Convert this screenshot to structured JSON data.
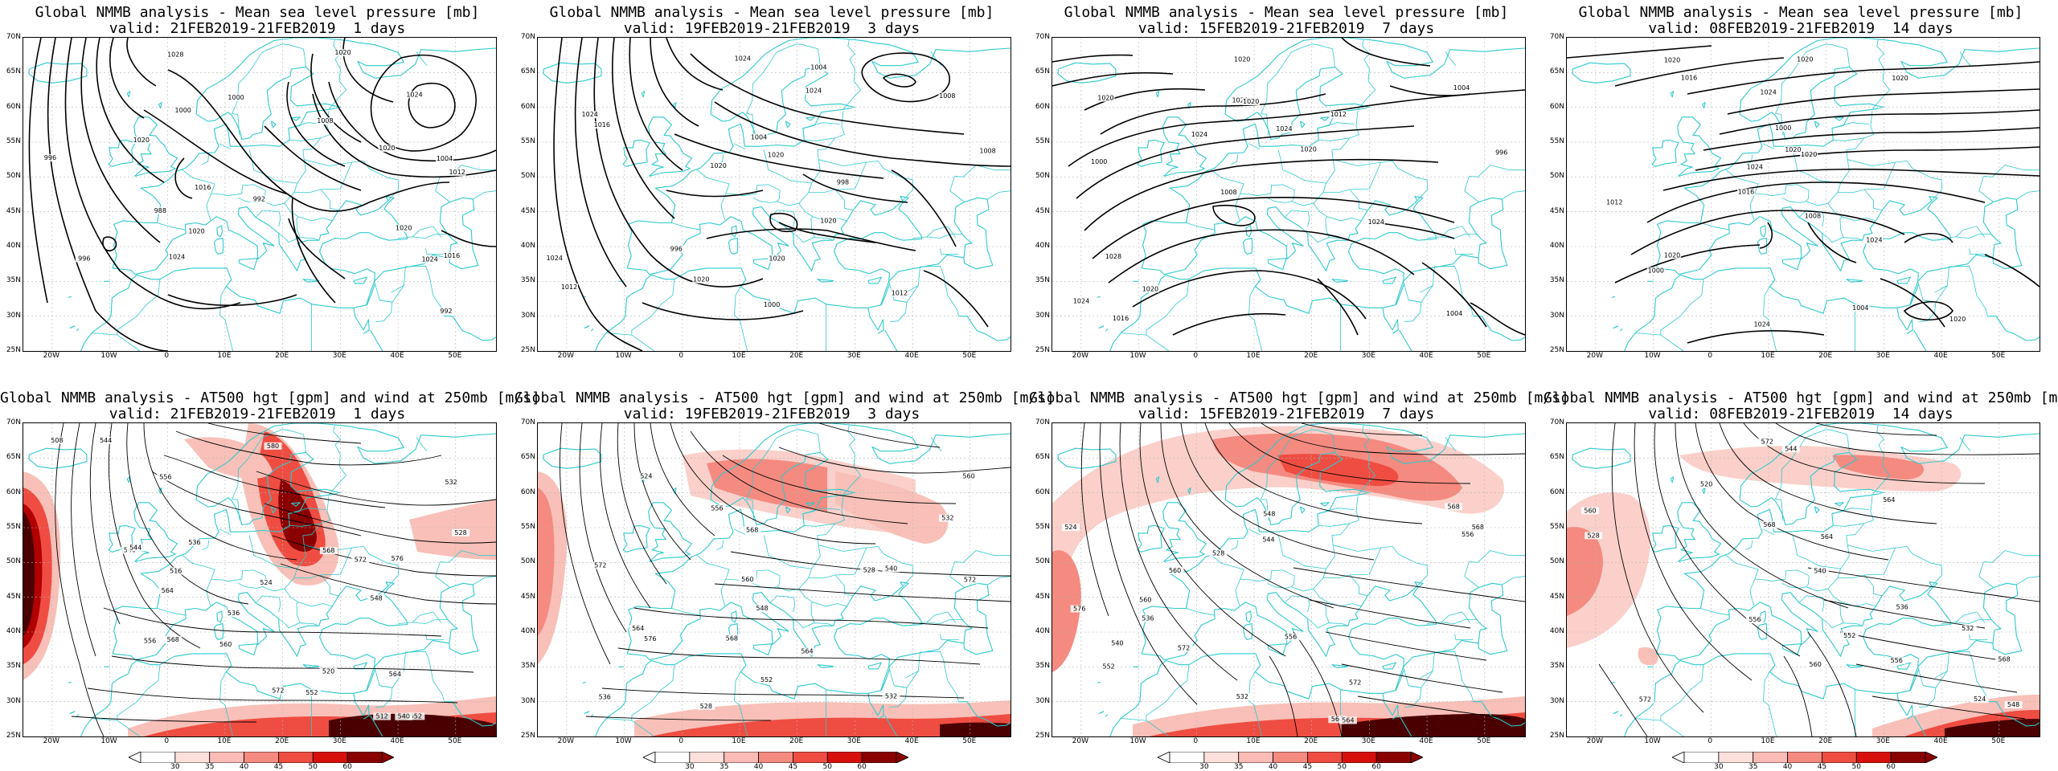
{
  "panels": [
    {
      "id": "p1",
      "kind": "mslp",
      "title": "Global NMMB analysis - Mean sea level pressure [mb]",
      "valid": "valid: 21FEB2019-21FEB2019  1 days",
      "contour_labels": [
        "1000",
        "1004",
        "1008",
        "1012",
        "1016",
        "1016",
        "1020",
        "1020",
        "1024",
        "1024",
        "1020",
        "1020",
        "1020",
        "1024",
        "996",
        "992",
        "988",
        "996",
        "1028",
        "1000",
        "992"
      ]
    },
    {
      "id": "p2",
      "kind": "mslp",
      "title": "Global NMMB analysis - Mean sea level pressure [mb]",
      "valid": "valid: 19FEB2019-21FEB2019  3 days",
      "contour_labels": [
        "1004",
        "1000",
        "996",
        "998",
        "1008",
        "1012",
        "1020",
        "1024",
        "1024",
        "1024",
        "1020",
        "1020",
        "1016",
        "1024",
        "1008",
        "1012",
        "1020",
        "1020",
        "1004"
      ]
    },
    {
      "id": "p3",
      "kind": "mslp",
      "title": "Global NMMB analysis - Mean sea level pressure [mb]",
      "valid": "valid: 15FEB2019-21FEB2019  7 days",
      "contour_labels": [
        "1004",
        "1000",
        "1004",
        "1008",
        "1012",
        "1016",
        "1020",
        "1024",
        "1028",
        "1024",
        "1024",
        "1020",
        "1020",
        "1020",
        "1024",
        "1020",
        "1020",
        "996"
      ]
    },
    {
      "id": "p4",
      "kind": "mslp",
      "title": "Global NMMB analysis - Mean sea level pressure [mb]",
      "valid": "valid: 08FEB2019-21FEB2019  14 days",
      "contour_labels": [
        "1000",
        "1004",
        "1008",
        "1012",
        "1016",
        "1020",
        "1024",
        "1024",
        "1020",
        "1020",
        "1024",
        "1020",
        "1020",
        "1024",
        "1020",
        "1016",
        "1000",
        "1020"
      ]
    },
    {
      "id": "p5",
      "kind": "hgt",
      "title": "Global NMMB analysis - AT500 hgt [gpm] and wind at 250mb [m/s]",
      "valid": "valid: 21FEB2019-21FEB2019  1 days",
      "contour_labels": [
        "536",
        "540",
        "544",
        "548",
        "552",
        "556",
        "560",
        "564",
        "568",
        "572",
        "576",
        "580",
        "508",
        "512",
        "516",
        "520",
        "524",
        "528",
        "532",
        "536",
        "540",
        "544",
        "552",
        "556",
        "564",
        "568",
        "572"
      ]
    },
    {
      "id": "p6",
      "kind": "hgt",
      "title": "Global NMMB analysis - AT500 hgt [gpm] and wind at 250mb [m/s]",
      "valid": "valid: 19FEB2019-21FEB2019  3 days",
      "contour_labels": [
        "528",
        "532",
        "540",
        "548",
        "552",
        "556",
        "560",
        "564",
        "568",
        "572",
        "576",
        "524",
        "528",
        "532",
        "536",
        "560",
        "564",
        "568",
        "572"
      ]
    },
    {
      "id": "p7",
      "kind": "hgt",
      "title": "Global NMMB analysis - AT500 hgt [gpm] and wind at 250mb [m/s]",
      "valid": "valid: 15FEB2019-21FEB2019  7 days",
      "contour_labels": [
        "524",
        "528",
        "532",
        "536",
        "540",
        "544",
        "548",
        "552",
        "556",
        "560",
        "564",
        "568",
        "572",
        "576",
        "556",
        "560",
        "564",
        "568",
        "572"
      ]
    },
    {
      "id": "p8",
      "kind": "hgt",
      "title": "Global NMMB analysis - AT500 hgt [gpm] and wind at 250mb [m/s]",
      "valid": "valid: 08FEB2019-21FEB2019  14 days",
      "contour_labels": [
        "520",
        "524",
        "528",
        "532",
        "536",
        "540",
        "544",
        "548",
        "552",
        "556",
        "560",
        "564",
        "568",
        "572",
        "556",
        "560",
        "564",
        "568",
        "572"
      ]
    }
  ],
  "axes": {
    "lat_labels": [
      "70N",
      "65N",
      "60N",
      "55N",
      "50N",
      "45N",
      "40N",
      "35N",
      "30N",
      "25N"
    ],
    "lon_labels": [
      "20W",
      "10W",
      "0",
      "10E",
      "20E",
      "30E",
      "40E",
      "50E"
    ]
  },
  "colorbar": {
    "labels": [
      "30",
      "35",
      "40",
      "45",
      "50",
      "60"
    ],
    "colors": [
      "#ffffff",
      "#fde0dc",
      "#fbbcb5",
      "#f58a80",
      "#ef4d42",
      "#d8100b",
      "#8a0000"
    ]
  },
  "colors": {
    "coast": "#2fc9cc",
    "contour": "#000000",
    "grid": "#b5b5b5"
  }
}
